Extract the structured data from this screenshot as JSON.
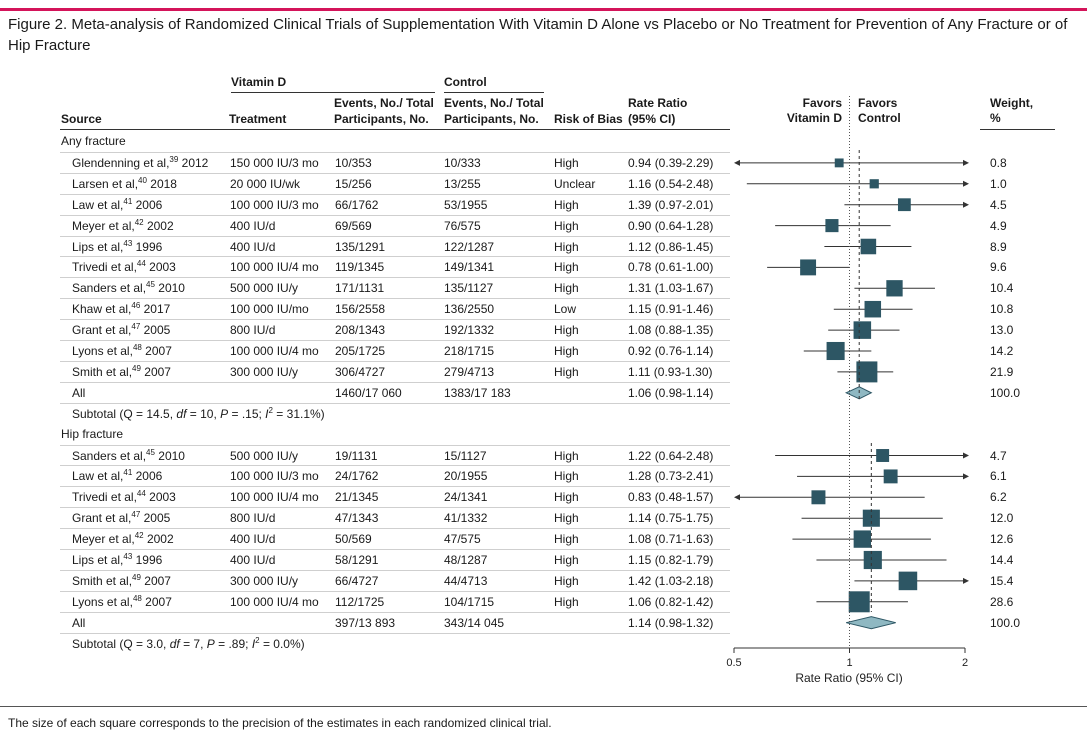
{
  "title": "Figure 2. Meta-analysis of Randomized Clinical Trials of Supplementation With Vitamin D Alone vs Placebo or No Treatment for Prevention of Any Fracture or of Hip Fracture",
  "headers": {
    "vitamin_d": "Vitamin D",
    "control": "Control",
    "source": "Source",
    "treatment": "Treatment",
    "events1": "Events, No./ Total",
    "participants1": "Participants, No.",
    "events2": "Events, No./ Total",
    "participants2": "Participants, No.",
    "risk": "Risk of Bias",
    "rr1": "Rate Ratio",
    "rr2": "(95% CI)",
    "favors": "Favors",
    "favors_vitd": "Vitamin D",
    "favors_control": "Control",
    "weight1": "Weight,",
    "weight2": "%"
  },
  "footnote": "The size of each square corresponds to the precision of the estimates in each randomized clinical trial.",
  "chart_data": {
    "type": "forest",
    "xlabel": "Rate Ratio (95% CI)",
    "xscale": "log",
    "xlim": [
      0.5,
      2
    ],
    "ticks": [
      "0.5",
      "1",
      "2"
    ],
    "tick_values": [
      0.5,
      1,
      2
    ],
    "reference_line": 1,
    "sections": [
      {
        "name": "Any fracture",
        "studies": [
          {
            "author": "Glendenning et al,",
            "ref": "39",
            "year": "2012",
            "treatment": "150 000 IU/3 mo",
            "vitd": "10/353",
            "control": "10/333",
            "bias": "High",
            "ci_text": "0.94 (0.39-2.29)",
            "rr": 0.94,
            "lo": 0.39,
            "hi": 2.29,
            "weight": "0.8"
          },
          {
            "author": "Larsen et al,",
            "ref": "40",
            "year": "2018",
            "treatment": "20 000 IU/wk",
            "vitd": "15/256",
            "control": "13/255",
            "bias": "Unclear",
            "ci_text": "1.16 (0.54-2.48)",
            "rr": 1.16,
            "lo": 0.54,
            "hi": 2.48,
            "weight": "1.0"
          },
          {
            "author": "Law et al,",
            "ref": "41",
            "year": "2006",
            "treatment": "100 000 IU/3 mo",
            "vitd": "66/1762",
            "control": "53/1955",
            "bias": "High",
            "ci_text": "1.39 (0.97-2.01)",
            "rr": 1.39,
            "lo": 0.97,
            "hi": 2.01,
            "weight": "4.5"
          },
          {
            "author": "Meyer et al,",
            "ref": "42",
            "year": "2002",
            "treatment": "400 IU/d",
            "vitd": "69/569",
            "control": "76/575",
            "bias": "High",
            "ci_text": "0.90 (0.64-1.28)",
            "rr": 0.9,
            "lo": 0.64,
            "hi": 1.28,
            "weight": "4.9"
          },
          {
            "author": "Lips et al,",
            "ref": "43",
            "year": "1996",
            "treatment": "400 IU/d",
            "vitd": "135/1291",
            "control": "122/1287",
            "bias": "High",
            "ci_text": "1.12 (0.86-1.45)",
            "rr": 1.12,
            "lo": 0.86,
            "hi": 1.45,
            "weight": "8.9"
          },
          {
            "author": "Trivedi et al,",
            "ref": "44",
            "year": "2003",
            "treatment": "100 000 IU/4 mo",
            "vitd": "119/1345",
            "control": "149/1341",
            "bias": "High",
            "ci_text": "0.78 (0.61-1.00)",
            "rr": 0.78,
            "lo": 0.61,
            "hi": 1.0,
            "weight": "9.6"
          },
          {
            "author": "Sanders et al,",
            "ref": "45",
            "year": "2010",
            "treatment": "500 000 IU/y",
            "vitd": "171/1131",
            "control": "135/1127",
            "bias": "High",
            "ci_text": "1.31 (1.03-1.67)",
            "rr": 1.31,
            "lo": 1.03,
            "hi": 1.67,
            "weight": "10.4"
          },
          {
            "author": "Khaw et al,",
            "ref": "46",
            "year": "2017",
            "treatment": "100 000 IU/mo",
            "vitd": "156/2558",
            "control": "136/2550",
            "bias": "Low",
            "ci_text": "1.15 (0.91-1.46)",
            "rr": 1.15,
            "lo": 0.91,
            "hi": 1.46,
            "weight": "10.8"
          },
          {
            "author": "Grant et al,",
            "ref": "47",
            "year": "2005",
            "treatment": "800 IU/d",
            "vitd": "208/1343",
            "control": "192/1332",
            "bias": "High",
            "ci_text": "1.08 (0.88-1.35)",
            "rr": 1.08,
            "lo": 0.88,
            "hi": 1.35,
            "weight": "13.0"
          },
          {
            "author": "Lyons et al,",
            "ref": "48",
            "year": "2007",
            "treatment": "100 000 IU/4 mo",
            "vitd": "205/1725",
            "control": "218/1715",
            "bias": "High",
            "ci_text": "0.92 (0.76-1.14)",
            "rr": 0.92,
            "lo": 0.76,
            "hi": 1.14,
            "weight": "14.2"
          },
          {
            "author": "Smith et al,",
            "ref": "49",
            "year": "2007",
            "treatment": "300 000 IU/y",
            "vitd": "306/4727",
            "control": "279/4713",
            "bias": "High",
            "ci_text": "1.11 (0.93-1.30)",
            "rr": 1.11,
            "lo": 0.93,
            "hi": 1.3,
            "weight": "21.9"
          }
        ],
        "all": {
          "label": "All",
          "vitd": "1460/17 060",
          "control": "1383/17 183",
          "ci_text": "1.06 (0.98-1.14)",
          "rr": 1.06,
          "lo": 0.98,
          "hi": 1.14,
          "weight": "100.0"
        },
        "subtotal": {
          "prefix": "Subtotal (Q = 14.5, ",
          "df": "df",
          "mid1": " = 10, ",
          "p": "P",
          "mid2": " = .15; ",
          "i": "I",
          "sup": "2",
          "end": " = 31.1%)"
        }
      },
      {
        "name": "Hip fracture",
        "studies": [
          {
            "author": "Sanders et al,",
            "ref": "45",
            "year": "2010",
            "treatment": "500 000 IU/y",
            "vitd": "19/1131",
            "control": "15/1127",
            "bias": "High",
            "ci_text": "1.22 (0.64-2.48)",
            "rr": 1.22,
            "lo": 0.64,
            "hi": 2.48,
            "weight": "4.7"
          },
          {
            "author": "Law et al,",
            "ref": "41",
            "year": "2006",
            "treatment": "100 000 IU/3 mo",
            "vitd": "24/1762",
            "control": "20/1955",
            "bias": "High",
            "ci_text": "1.28 (0.73-2.41)",
            "rr": 1.28,
            "lo": 0.73,
            "hi": 2.41,
            "weight": "6.1"
          },
          {
            "author": "Trivedi et al,",
            "ref": "44",
            "year": "2003",
            "treatment": "100 000 IU/4 mo",
            "vitd": "21/1345",
            "control": "24/1341",
            "bias": "High",
            "ci_text": "0.83 (0.48-1.57)",
            "rr": 0.83,
            "lo": 0.48,
            "hi": 1.57,
            "weight": "6.2"
          },
          {
            "author": "Grant et al,",
            "ref": "47",
            "year": "2005",
            "treatment": "800 IU/d",
            "vitd": "47/1343",
            "control": "41/1332",
            "bias": "High",
            "ci_text": "1.14 (0.75-1.75)",
            "rr": 1.14,
            "lo": 0.75,
            "hi": 1.75,
            "weight": "12.0"
          },
          {
            "author": "Meyer et al,",
            "ref": "42",
            "year": "2002",
            "treatment": "400 IU/d",
            "vitd": "50/569",
            "control": "47/575",
            "bias": "High",
            "ci_text": "1.08 (0.71-1.63)",
            "rr": 1.08,
            "lo": 0.71,
            "hi": 1.63,
            "weight": "12.6"
          },
          {
            "author": "Lips et al,",
            "ref": "43",
            "year": "1996",
            "treatment": "400 IU/d",
            "vitd": "58/1291",
            "control": "48/1287",
            "bias": "High",
            "ci_text": "1.15 (0.82-1.79)",
            "rr": 1.15,
            "lo": 0.82,
            "hi": 1.79,
            "weight": "14.4"
          },
          {
            "author": "Smith et al,",
            "ref": "49",
            "year": "2007",
            "treatment": "300 000 IU/y",
            "vitd": "66/4727",
            "control": "44/4713",
            "bias": "High",
            "ci_text": "1.42 (1.03-2.18)",
            "rr": 1.42,
            "lo": 1.03,
            "hi": 2.18,
            "weight": "15.4"
          },
          {
            "author": "Lyons et al,",
            "ref": "48",
            "year": "2007",
            "treatment": "100 000 IU/4 mo",
            "vitd": "112/1725",
            "control": "104/1715",
            "bias": "High",
            "ci_text": "1.06 (0.82-1.42)",
            "rr": 1.06,
            "lo": 0.82,
            "hi": 1.42,
            "weight": "28.6"
          }
        ],
        "all": {
          "label": "All",
          "vitd": "397/13 893",
          "control": "343/14 045",
          "ci_text": "1.14 (0.98-1.32)",
          "rr": 1.14,
          "lo": 0.98,
          "hi": 1.32,
          "weight": "100.0"
        },
        "subtotal": {
          "prefix": "Subtotal (Q = 3.0, ",
          "df": "df",
          "mid1": " = 7, ",
          "p": "P",
          "mid2": " = .89; ",
          "i": "I",
          "sup": "2",
          "end": " = 0.0%)"
        }
      }
    ]
  },
  "colors": {
    "accent": "#d4145a",
    "marker": "#2d5664",
    "diamond": "#8fb8c2"
  }
}
